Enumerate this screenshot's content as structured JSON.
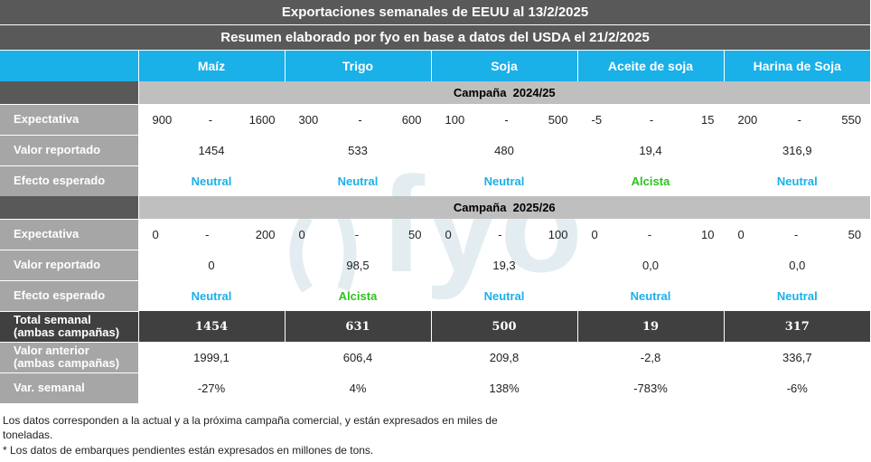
{
  "title": "Exportaciones semanales de EEUU al 13/2/2025",
  "subtitle": "Resumen elaborado por fyo en base a datos del USDA el 21/2/2025",
  "columns": [
    "Maíz",
    "Trigo",
    "Soja",
    "Aceite de soja",
    "Harina de Soja"
  ],
  "watermark": "fyo",
  "campaign1": {
    "name": "Campaña  2024/25",
    "expectativa_label": "Expectativa",
    "expectativa": [
      {
        "min": "900",
        "dash": "-",
        "max": "1600"
      },
      {
        "min": "300",
        "dash": "-",
        "max": "600"
      },
      {
        "min": "100",
        "dash": "-",
        "max": "500"
      },
      {
        "min": "-5",
        "dash": "-",
        "max": "15"
      },
      {
        "min": "200",
        "dash": "-",
        "max": "550"
      }
    ],
    "reportado_label": "Valor reportado",
    "reportado": [
      "1454",
      "533",
      "480",
      "19,4",
      "316,9"
    ],
    "efecto_label": "Efecto esperado",
    "efecto": [
      "Neutral",
      "Neutral",
      "Neutral",
      "Alcista",
      "Neutral"
    ]
  },
  "campaign2": {
    "name": "Campaña  2025/26",
    "expectativa_label": "Expectativa",
    "expectativa": [
      {
        "min": "0",
        "dash": "-",
        "max": "200"
      },
      {
        "min": "0",
        "dash": "-",
        "max": "50"
      },
      {
        "min": "0",
        "dash": "-",
        "max": "100"
      },
      {
        "min": "0",
        "dash": "-",
        "max": "10"
      },
      {
        "min": "0",
        "dash": "-",
        "max": "50"
      }
    ],
    "reportado_label": "Valor reportado",
    "reportado": [
      "0",
      "98,5",
      "19,3",
      "0,0",
      "0,0"
    ],
    "efecto_label": "Efecto esperado",
    "efecto": [
      "Neutral",
      "Alcista",
      "Neutral",
      "Neutral",
      "Neutral"
    ]
  },
  "total": {
    "label_line1": "Total semanal",
    "label_line2": "(ambas campañas)",
    "values": [
      "1454",
      "631",
      "500",
      "19",
      "317"
    ]
  },
  "anterior": {
    "label_line1": "Valor anterior",
    "label_line2": "(ambas campañas)",
    "values": [
      "1999,1",
      "606,4",
      "209,8",
      "-2,8",
      "336,7"
    ]
  },
  "variacion": {
    "label": "Var. semanal",
    "values": [
      "-27%",
      "4%",
      "138%",
      "-783%",
      "-6%"
    ]
  },
  "footnote1": "Los datos corresponden a la actual y a la próxima campaña comercial, y están expresados en miles de",
  "footnote1b": "toneladas.",
  "footnote2": "* Los datos de embarques pendientes están expresados en millones de tons.",
  "colors": {
    "accent": "#1ab0e8",
    "alcista": "#2ec21e",
    "dark": "#404040",
    "label_bg": "#a6a6a6"
  }
}
